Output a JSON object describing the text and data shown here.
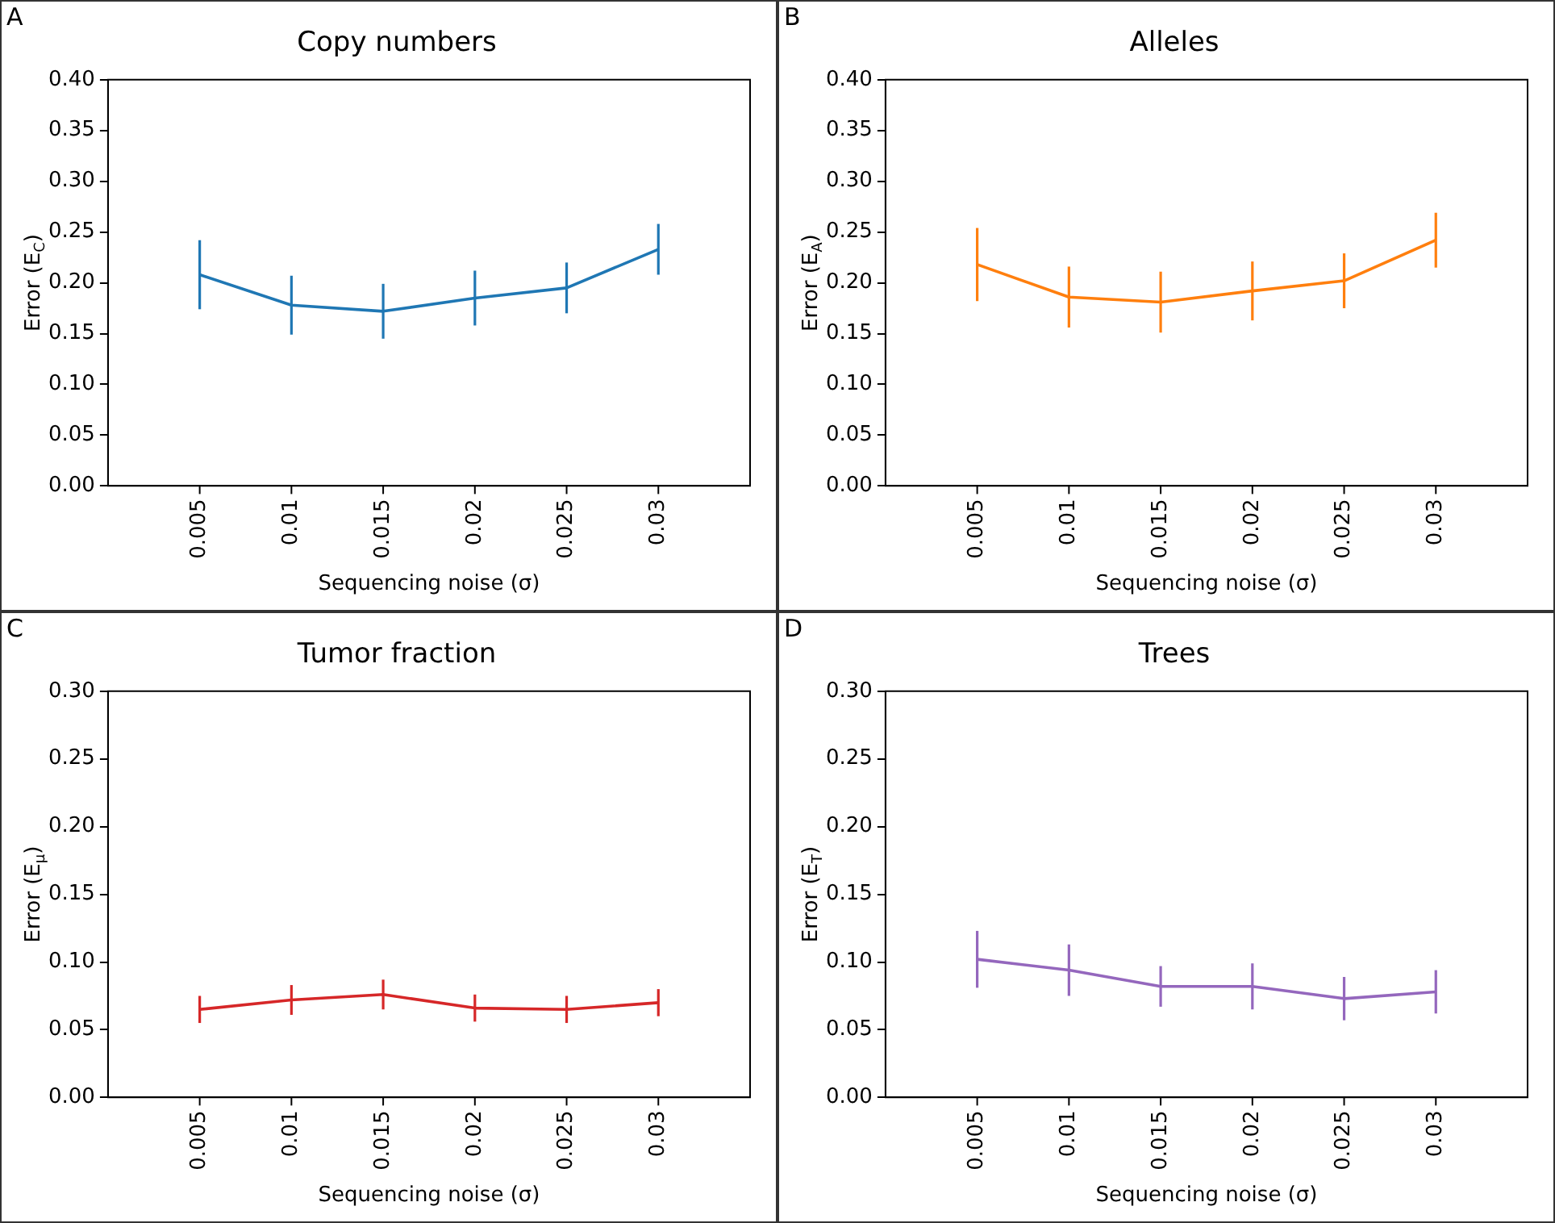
{
  "chart_data": [
    {
      "type": "line",
      "title": "Copy numbers",
      "xlabel": "Sequencing noise (σ)",
      "ylabel": "Error (E$_{C}$)",
      "annotations": [
        "A"
      ],
      "color": "#1f77b4",
      "marker": "none",
      "grid": false,
      "x": [
        0.005,
        0.01,
        0.015,
        0.02,
        0.025,
        0.03
      ],
      "values": [
        0.208,
        0.178,
        0.172,
        0.185,
        0.195,
        0.233
      ],
      "errors": [
        0.034,
        0.029,
        0.027,
        0.027,
        0.025,
        0.025
      ],
      "xlim": [
        0,
        0.035
      ],
      "xticks": [
        0.005,
        0.01,
        0.015,
        0.02,
        0.025,
        0.03
      ],
      "ylim": [
        0,
        0.4
      ],
      "yticks": [
        {
          "value": 0,
          "label": "0.00"
        },
        {
          "value": 0.05,
          "label": "0.05"
        },
        {
          "value": 0.1,
          "label": "0.10"
        },
        {
          "value": 0.15,
          "label": "0.15"
        },
        {
          "value": 0.2,
          "label": "0.20"
        },
        {
          "value": 0.25,
          "label": "0.25"
        },
        {
          "value": 0.3,
          "label": "0.30"
        },
        {
          "value": 0.35,
          "label": "0.35"
        },
        {
          "value": 0.4,
          "label": "0.40"
        }
      ]
    },
    {
      "type": "line",
      "title": "Alleles",
      "xlabel": "Sequencing noise (σ)",
      "ylabel": "Error (E$_{A}$)",
      "annotations": [
        "B"
      ],
      "color": "#ff7f0e",
      "marker": "none",
      "grid": false,
      "x": [
        0.005,
        0.01,
        0.015,
        0.02,
        0.025,
        0.03
      ],
      "values": [
        0.218,
        0.186,
        0.181,
        0.192,
        0.202,
        0.242
      ],
      "errors": [
        0.036,
        0.03,
        0.03,
        0.029,
        0.027,
        0.027
      ],
      "xlim": [
        0,
        0.035
      ],
      "xticks": [
        0.005,
        0.01,
        0.015,
        0.02,
        0.025,
        0.03
      ],
      "ylim": [
        0,
        0.4
      ],
      "yticks": [
        {
          "value": 0,
          "label": "0.00"
        },
        {
          "value": 0.05,
          "label": "0.05"
        },
        {
          "value": 0.1,
          "label": "0.10"
        },
        {
          "value": 0.15,
          "label": "0.15"
        },
        {
          "value": 0.2,
          "label": "0.20"
        },
        {
          "value": 0.25,
          "label": "0.25"
        },
        {
          "value": 0.3,
          "label": "0.30"
        },
        {
          "value": 0.35,
          "label": "0.35"
        },
        {
          "value": 0.4,
          "label": "0.40"
        }
      ]
    },
    {
      "type": "line",
      "title": "Tumor fraction",
      "xlabel": "Sequencing noise (σ)",
      "ylabel": "Error (E$_{μ}$)",
      "annotations": [
        "C"
      ],
      "color": "#d62728",
      "marker": "none",
      "grid": false,
      "x": [
        0.005,
        0.01,
        0.015,
        0.02,
        0.025,
        0.03
      ],
      "values": [
        0.065,
        0.072,
        0.076,
        0.066,
        0.065,
        0.07
      ],
      "errors": [
        0.01,
        0.011,
        0.011,
        0.01,
        0.01,
        0.01
      ],
      "xlim": [
        0,
        0.035
      ],
      "xticks": [
        0.005,
        0.01,
        0.015,
        0.02,
        0.025,
        0.03
      ],
      "ylim": [
        0,
        0.3
      ],
      "yticks": [
        {
          "value": 0,
          "label": "0.00"
        },
        {
          "value": 0.05,
          "label": "0.05"
        },
        {
          "value": 0.1,
          "label": "0.10"
        },
        {
          "value": 0.15,
          "label": "0.15"
        },
        {
          "value": 0.2,
          "label": "0.20"
        },
        {
          "value": 0.25,
          "label": "0.25"
        },
        {
          "value": 0.3,
          "label": "0.30"
        }
      ]
    },
    {
      "type": "line",
      "title": "Trees",
      "xlabel": "Sequencing noise (σ)",
      "ylabel": "Error (E$_{T}$)",
      "annotations": [
        "D"
      ],
      "color": "#9467bd",
      "marker": "none",
      "grid": false,
      "x": [
        0.005,
        0.01,
        0.015,
        0.02,
        0.025,
        0.03
      ],
      "values": [
        0.102,
        0.094,
        0.082,
        0.082,
        0.073,
        0.078
      ],
      "errors": [
        0.021,
        0.019,
        0.015,
        0.017,
        0.016,
        0.016
      ],
      "xlim": [
        0,
        0.035
      ],
      "xticks": [
        0.005,
        0.01,
        0.015,
        0.02,
        0.025,
        0.03
      ],
      "ylim": [
        0,
        0.3
      ],
      "yticks": [
        {
          "value": 0,
          "label": "0.00"
        },
        {
          "value": 0.05,
          "label": "0.05"
        },
        {
          "value": 0.1,
          "label": "0.10"
        },
        {
          "value": 0.15,
          "label": "0.15"
        },
        {
          "value": 0.2,
          "label": "0.20"
        },
        {
          "value": 0.25,
          "label": "0.25"
        },
        {
          "value": 0.3,
          "label": "0.30"
        }
      ]
    }
  ]
}
